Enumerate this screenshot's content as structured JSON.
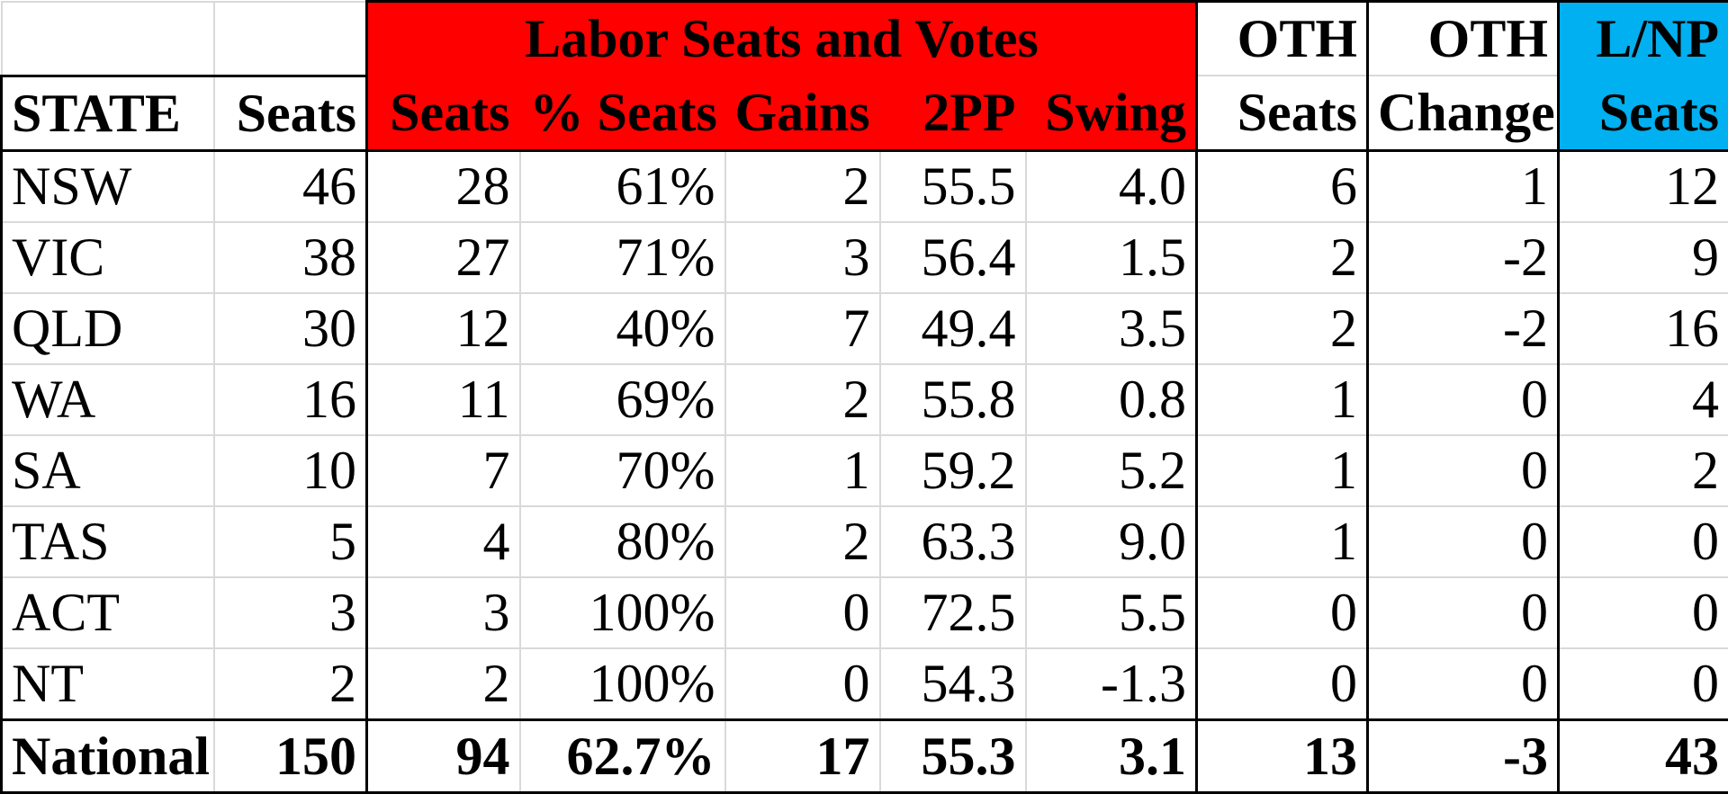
{
  "header": {
    "labor_group": "Labor Seats and Votes",
    "oth_seats_top": "OTH",
    "oth_change_top": "OTH",
    "lnp_top": "L/NP",
    "columns": [
      "STATE",
      "Seats",
      "Seats",
      "% Seats",
      "Gains",
      "2PP",
      "Swing",
      "Seats",
      "Change",
      "Seats"
    ]
  },
  "rows": [
    {
      "state": "NSW",
      "seats": "46",
      "labor_seats": "28",
      "pct_seats": "61%",
      "gains": "2",
      "tpp": "55.5",
      "swing": "4.0",
      "oth_seats": "6",
      "oth_change": "1",
      "lnp_seats": "12"
    },
    {
      "state": "VIC",
      "seats": "38",
      "labor_seats": "27",
      "pct_seats": "71%",
      "gains": "3",
      "tpp": "56.4",
      "swing": "1.5",
      "oth_seats": "2",
      "oth_change": "-2",
      "lnp_seats": "9"
    },
    {
      "state": "QLD",
      "seats": "30",
      "labor_seats": "12",
      "pct_seats": "40%",
      "gains": "7",
      "tpp": "49.4",
      "swing": "3.5",
      "oth_seats": "2",
      "oth_change": "-2",
      "lnp_seats": "16"
    },
    {
      "state": "WA",
      "seats": "16",
      "labor_seats": "11",
      "pct_seats": "69%",
      "gains": "2",
      "tpp": "55.8",
      "swing": "0.8",
      "oth_seats": "1",
      "oth_change": "0",
      "lnp_seats": "4"
    },
    {
      "state": "SA",
      "seats": "10",
      "labor_seats": "7",
      "pct_seats": "70%",
      "gains": "1",
      "tpp": "59.2",
      "swing": "5.2",
      "oth_seats": "1",
      "oth_change": "0",
      "lnp_seats": "2"
    },
    {
      "state": "TAS",
      "seats": "5",
      "labor_seats": "4",
      "pct_seats": "80%",
      "gains": "2",
      "tpp": "63.3",
      "swing": "9.0",
      "oth_seats": "1",
      "oth_change": "0",
      "lnp_seats": "0"
    },
    {
      "state": "ACT",
      "seats": "3",
      "labor_seats": "3",
      "pct_seats": "100%",
      "gains": "0",
      "tpp": "72.5",
      "swing": "5.5",
      "oth_seats": "0",
      "oth_change": "0",
      "lnp_seats": "0"
    },
    {
      "state": "NT",
      "seats": "2",
      "labor_seats": "2",
      "pct_seats": "100%",
      "gains": "0",
      "tpp": "54.3",
      "swing": "-1.3",
      "oth_seats": "0",
      "oth_change": "0",
      "lnp_seats": "0"
    }
  ],
  "total": {
    "state": "National",
    "seats": "150",
    "labor_seats": "94",
    "pct_seats": "62.7%",
    "gains": "17",
    "tpp": "55.3",
    "swing": "3.1",
    "oth_seats": "13",
    "oth_change": "-3",
    "lnp_seats": "43"
  },
  "colors": {
    "labor": "#ff0000",
    "lnp": "#00b0f0",
    "gridline": "#d9d9d9",
    "border": "#000000"
  }
}
